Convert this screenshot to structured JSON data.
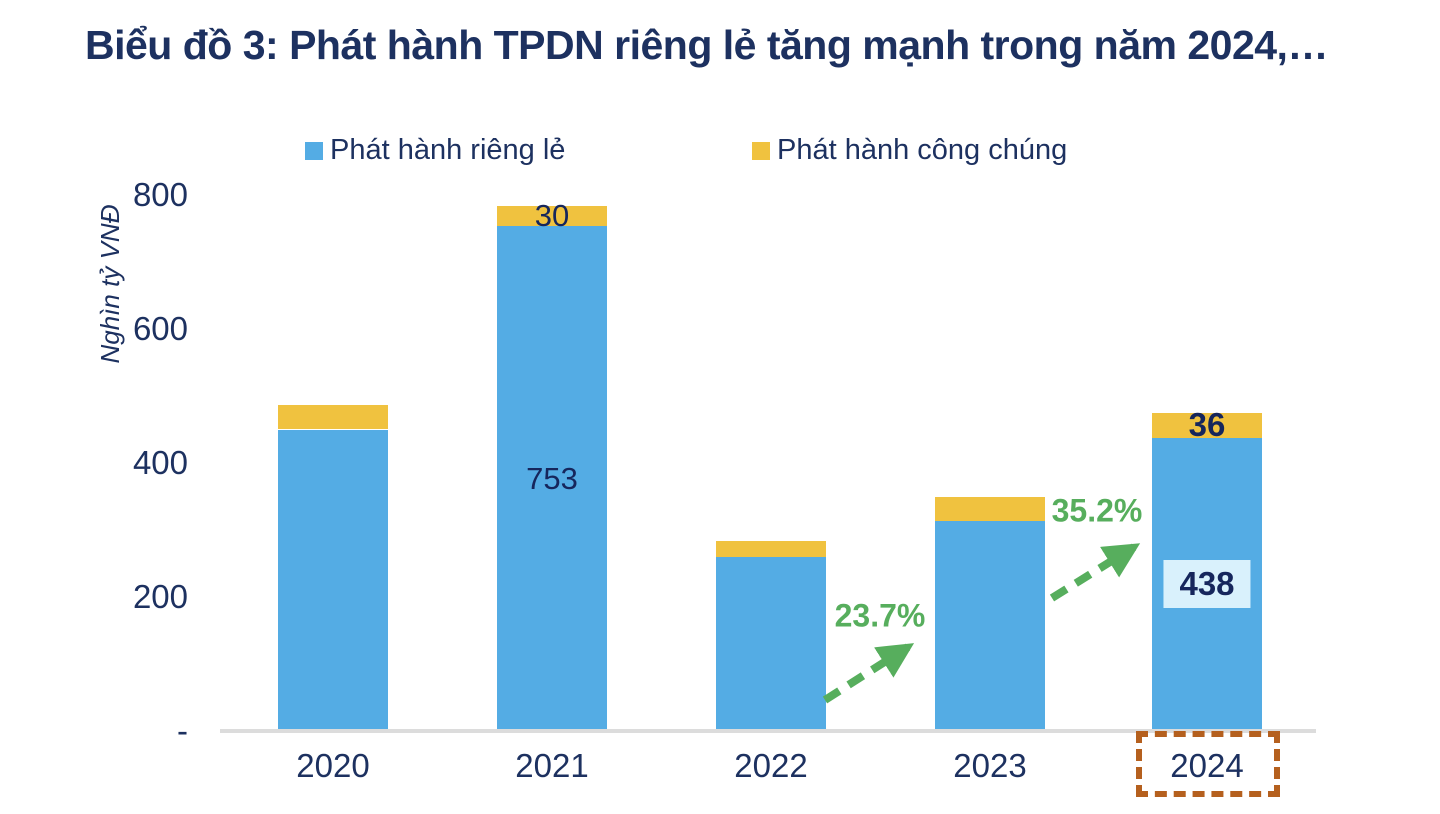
{
  "title": "Biểu đồ 3: Phát hành TPDN riêng lẻ tăng mạnh trong năm 2024,…",
  "colors": {
    "navy_text": "#1D3160",
    "private_blue": "#54ACE4",
    "public_yellow": "#F0C23F",
    "growth_green": "#57AE5D",
    "label_box_bg": "#D9F1FC",
    "highlight_box_border": "#B5601E",
    "axis_line_gray": "#DCDCDC"
  },
  "legend": {
    "private": {
      "label": "Phát hành riêng lẻ",
      "swatch_color": "#54ACE4"
    },
    "public": {
      "label": "Phát hành công chúng",
      "swatch_color": "#F0C23F"
    }
  },
  "y_axis": {
    "title": "Nghìn tỷ VNĐ",
    "tick_labels": [
      "800",
      "600",
      "400",
      "200",
      "-"
    ],
    "tick_values": [
      800,
      600,
      400,
      200,
      0
    ]
  },
  "chart_data": {
    "type": "bar",
    "stacked": true,
    "title": "Biểu đồ 3: Phát hành TPDN riêng lẻ tăng mạnh trong năm 2024,…",
    "ylabel": "Nghìn tỷ VNĐ",
    "ylim": [
      0,
      800
    ],
    "yticks": [
      0,
      200,
      400,
      600,
      800
    ],
    "grid": false,
    "legend_position": "top",
    "categories": [
      "2020",
      "2021",
      "2022",
      "2023",
      "2024"
    ],
    "series": [
      {
        "name": "Phát hành riêng lẻ",
        "color": "#54ACE4",
        "values": [
          450,
          753,
          260,
          313,
          438
        ]
      },
      {
        "name": "Phát hành công chúng",
        "color": "#F0C23F",
        "values": [
          36,
          30,
          23,
          37,
          36
        ]
      }
    ],
    "totals": [
      486,
      783,
      283,
      350,
      474
    ],
    "bar_labels": [
      {
        "category_index": 1,
        "segment": "private",
        "text": "753",
        "bold": false,
        "boxed": false
      },
      {
        "category_index": 1,
        "segment": "public",
        "text": "30",
        "bold": false,
        "boxed": false
      },
      {
        "category_index": 4,
        "segment": "private",
        "text": "438",
        "bold": true,
        "boxed": true
      },
      {
        "category_index": 4,
        "segment": "public",
        "text": "36",
        "bold": true,
        "boxed": false
      }
    ],
    "annotations": [
      {
        "text": "23.7%",
        "kind": "growth-arrow",
        "from": "2022",
        "to": "2023"
      },
      {
        "text": "35.2%",
        "kind": "growth-arrow",
        "from": "2023",
        "to": "2024"
      }
    ],
    "highlighted_category": "2024"
  }
}
